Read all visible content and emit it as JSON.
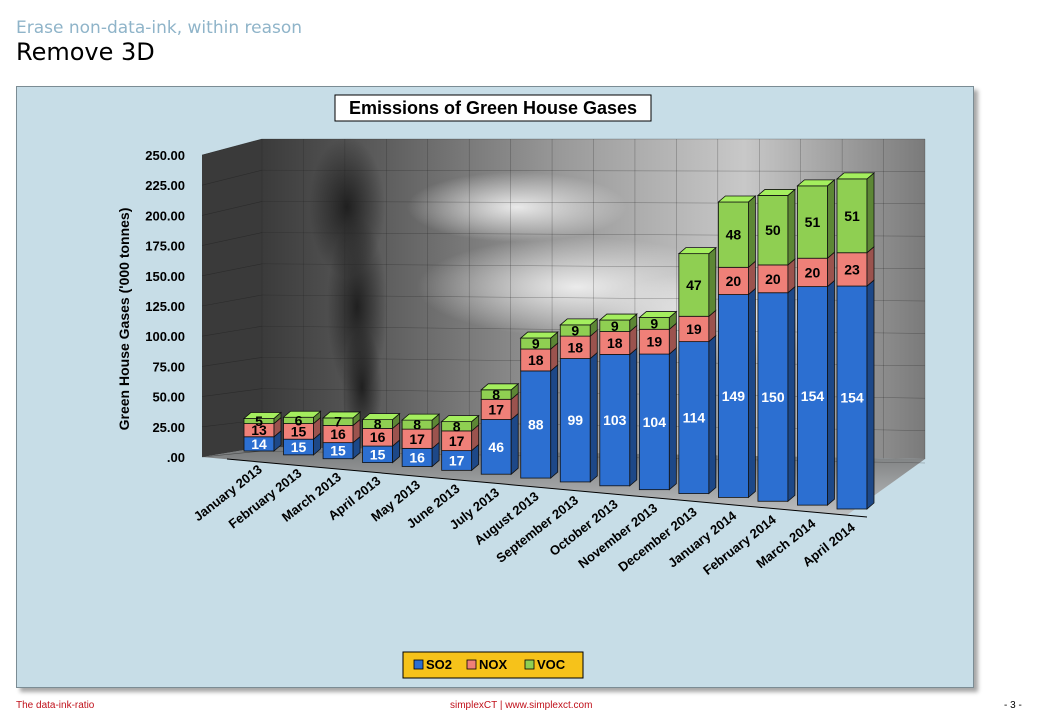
{
  "slide": {
    "subtitle": "Erase non-data-ink, within reason",
    "title": "Remove 3D",
    "footer_left": "The data-ink-ratio",
    "footer_center": "simplexCT  |  www.simplexct.com",
    "footer_right": "- 3 -"
  },
  "colors": {
    "SO2": "#2c6fd1",
    "NOX": "#ef8078",
    "VOC": "#8fcf52",
    "legend_bg": "#f6c21a",
    "panel_bg": "#c7dde7"
  },
  "chart_data": {
    "type": "bar",
    "stacked": true,
    "three_d": true,
    "title": "Emissions of Green House Gases",
    "ylabel": "Green House Gases ('000 tonnes)",
    "xlabel": "",
    "ylim": [
      0,
      250
    ],
    "yticks": [
      ".00",
      "25.00",
      "50.00",
      "75.00",
      "100.00",
      "125.00",
      "150.00",
      "175.00",
      "200.00",
      "225.00",
      "250.00"
    ],
    "categories": [
      "January 2013",
      "February 2013",
      "March 2013",
      "April 2013",
      "May 2013",
      "June 2013",
      "July 2013",
      "August 2013",
      "September 2013",
      "October 2013",
      "November 2013",
      "December 2013",
      "January 2014",
      "February 2014",
      "March 2014",
      "April 2014"
    ],
    "series": [
      {
        "name": "SO2",
        "values": [
          14,
          15,
          15,
          15,
          16,
          17,
          46,
          88,
          99,
          103,
          104,
          114,
          149,
          150,
          154,
          154
        ]
      },
      {
        "name": "NOX",
        "values": [
          13,
          15,
          16,
          16,
          17,
          17,
          17,
          18,
          18,
          18,
          19,
          19,
          20,
          20,
          20,
          23
        ]
      },
      {
        "name": "VOC",
        "values": [
          5,
          6,
          7,
          8,
          8,
          8,
          8,
          9,
          9,
          9,
          9,
          47,
          48,
          50,
          51,
          51
        ]
      }
    ],
    "legend": {
      "position": "bottom",
      "items": [
        "SO2",
        "NOX",
        "VOC"
      ]
    },
    "grid": true
  }
}
